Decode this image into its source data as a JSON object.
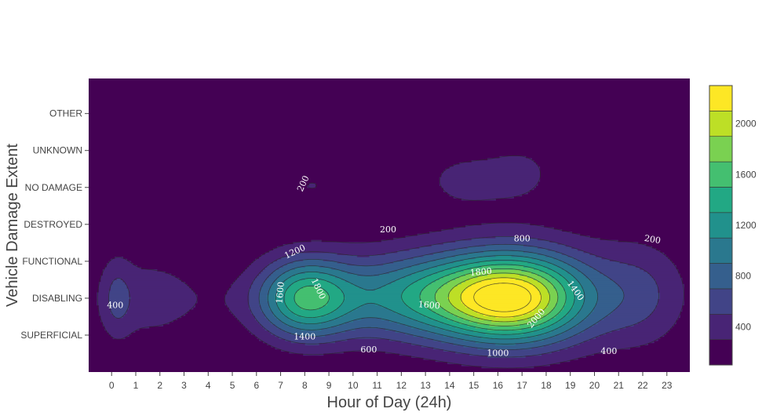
{
  "chart_data": {
    "type": "contour",
    "title": "",
    "xlabel": "Hour of Day (24h)",
    "ylabel": "Vehicle Damage Extent",
    "x": [
      0,
      1,
      2,
      3,
      4,
      5,
      6,
      7,
      8,
      9,
      10,
      11,
      12,
      13,
      14,
      15,
      16,
      17,
      18,
      19,
      20,
      21,
      22,
      23
    ],
    "y": [
      "SUPERFICIAL",
      "DISABLING",
      "FUNCTIONAL",
      "DESTROYED",
      "NO DAMAGE",
      "UNKNOWN",
      "OTHER"
    ],
    "xlim": [
      -0.95,
      23.95
    ],
    "ylim": [
      -1.0,
      6.95
    ],
    "grid": false,
    "colorscale": "Viridis",
    "colorbar": {
      "range": [
        100,
        2300
      ],
      "contour_step": 200,
      "ticks": [
        400,
        800,
        1200,
        1600,
        2000
      ],
      "colors": [
        "#440154",
        "#482475",
        "#414487",
        "#355f8d",
        "#2a788e",
        "#21918c",
        "#22a884",
        "#44bf70",
        "#7ad151",
        "#bddf26",
        "#fde725"
      ]
    },
    "contour_labels": [
      {
        "text": "200",
        "x": 11.45,
        "y": 2.85,
        "angle": 0
      },
      {
        "text": "200",
        "x": 22.4,
        "y": 2.58,
        "angle": 10
      },
      {
        "text": "200",
        "x": 7.95,
        "y": 4.1,
        "angle": -65
      },
      {
        "text": "400",
        "x": 0.15,
        "y": 0.8,
        "angle": 0
      },
      {
        "text": "400",
        "x": 20.6,
        "y": -0.45,
        "angle": 0
      },
      {
        "text": "600",
        "x": 10.65,
        "y": -0.4,
        "angle": 0
      },
      {
        "text": "800",
        "x": 17.0,
        "y": 2.6,
        "angle": 0
      },
      {
        "text": "1000",
        "x": 16.0,
        "y": -0.5,
        "angle": 0
      },
      {
        "text": "1200",
        "x": 7.6,
        "y": 2.25,
        "angle": -25
      },
      {
        "text": "1400",
        "x": 8.0,
        "y": -0.05,
        "angle": 0
      },
      {
        "text": "1400",
        "x": 19.2,
        "y": 1.2,
        "angle": 55
      },
      {
        "text": "1600",
        "x": 7.0,
        "y": 1.15,
        "angle": -85
      },
      {
        "text": "1600",
        "x": 13.15,
        "y": 0.8,
        "angle": 5
      },
      {
        "text": "1800",
        "x": 8.55,
        "y": 1.25,
        "angle": 65
      },
      {
        "text": "1800",
        "x": 15.3,
        "y": 1.7,
        "angle": -5
      },
      {
        "text": "2000",
        "x": 17.6,
        "y": 0.45,
        "angle": -50
      }
    ]
  }
}
